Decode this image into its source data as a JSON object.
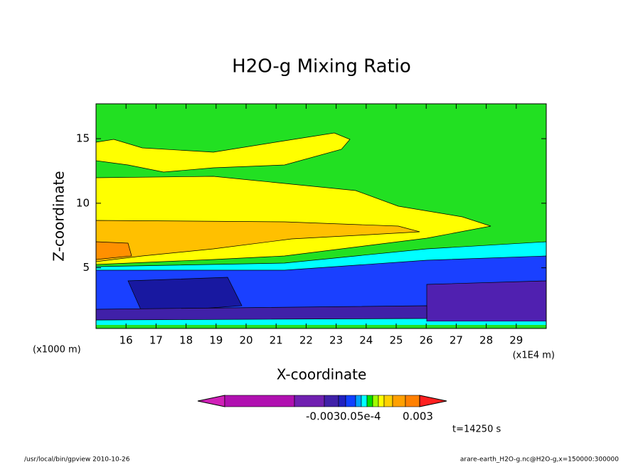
{
  "chart_data": {
    "type": "contour",
    "title": "H2O-g Mixing Ratio",
    "x_label": "X-coordinate",
    "y_label": "Z-coordinate",
    "x_unit": "(x1E4 m)",
    "y_unit": "(x1000 m)",
    "xlim": [
      15,
      30
    ],
    "ylim": [
      0.3,
      17.7
    ],
    "xticks": [
      16,
      17,
      18,
      19,
      20,
      21,
      22,
      23,
      24,
      25,
      26,
      27,
      28,
      29
    ],
    "yticks": [
      5,
      10,
      15
    ],
    "colorbar_colors": [
      "#d020b8",
      "#b010b0",
      "#7020b0",
      "#4020a8",
      "#2020c0",
      "#1040ff",
      "#00a0ff",
      "#00ffff",
      "#00e000",
      "#a0ff00",
      "#ffff00",
      "#ffd000",
      "#ffa000",
      "#ff8000",
      "#ff2020"
    ],
    "colorbar_labels": [
      "-0.003",
      "0.05e-4",
      "0.003"
    ],
    "time_label": "t=14250 s",
    "footer_left": "/usr/local/bin/gpview  2010-10-26",
    "footer_right": "arare-earth_H2O-g.nc@H2O-g,x=150000:300000"
  }
}
